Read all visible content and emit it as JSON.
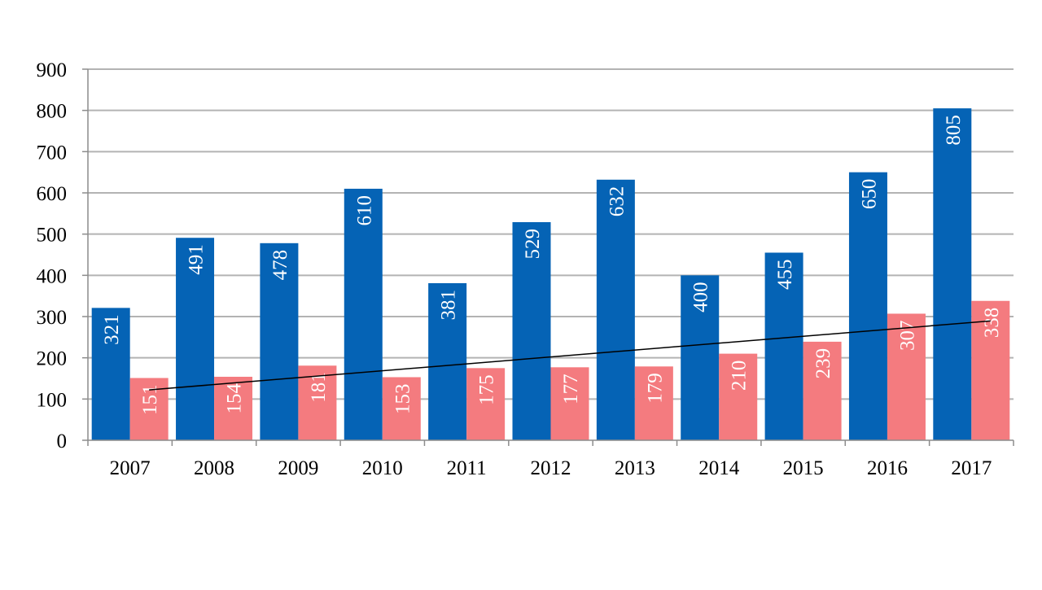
{
  "chart_data": {
    "type": "bar",
    "categories": [
      "2007",
      "2008",
      "2009",
      "2010",
      "2011",
      "2012",
      "2013",
      "2014",
      "2015",
      "2016",
      "2017"
    ],
    "series": [
      {
        "values": [
          321,
          491,
          478,
          610,
          381,
          529,
          632,
          400,
          455,
          650,
          805
        ],
        "color": "#0563B5"
      },
      {
        "values": [
          151,
          154,
          181,
          153,
          175,
          177,
          179,
          210,
          239,
          307,
          338
        ],
        "color": "#F47B7F"
      }
    ],
    "trendline": {
      "series_index": 1,
      "type": "linear",
      "color": "#000000"
    },
    "ylim": [
      0,
      900
    ],
    "yticks": [
      0,
      100,
      200,
      300,
      400,
      500,
      600,
      700,
      800,
      900
    ],
    "grid": true,
    "data_labels": "inside, rotated vertical",
    "legend": "none"
  }
}
